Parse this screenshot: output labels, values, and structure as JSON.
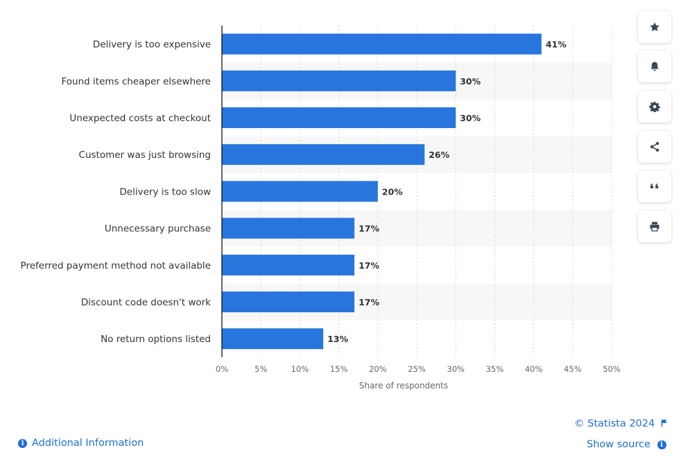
{
  "chart_data": {
    "type": "bar",
    "orientation": "horizontal",
    "categories": [
      "Delivery is too expensive",
      "Found items cheaper elsewhere",
      "Unexpected costs at checkout",
      "Customer was just browsing",
      "Delivery is too slow",
      "Unnecessary purchase",
      "Preferred payment method not available",
      "Discount code doesn't work",
      "No return options listed"
    ],
    "values": [
      41,
      30,
      30,
      26,
      20,
      17,
      17,
      17,
      13
    ],
    "value_labels": [
      "41%",
      "30%",
      "30%",
      "26%",
      "20%",
      "17%",
      "17%",
      "17%",
      "13%"
    ],
    "xlabel": "Share of respondents",
    "xlim": [
      0,
      50
    ],
    "x_ticks": [
      0,
      5,
      10,
      15,
      20,
      25,
      30,
      35,
      40,
      45,
      50
    ],
    "x_tick_labels": [
      "0%",
      "5%",
      "10%",
      "15%",
      "20%",
      "25%",
      "30%",
      "35%",
      "40%",
      "45%",
      "50%"
    ],
    "grid": true,
    "bar_color": "#2876dd"
  },
  "toolbar": {
    "buttons": [
      {
        "name": "favorite-button",
        "icon": "star-icon"
      },
      {
        "name": "notification-button",
        "icon": "bell-icon"
      },
      {
        "name": "settings-button",
        "icon": "gear-icon"
      },
      {
        "name": "share-button",
        "icon": "share-icon"
      },
      {
        "name": "cite-button",
        "icon": "quote-icon"
      },
      {
        "name": "print-button",
        "icon": "printer-icon"
      }
    ]
  },
  "footer": {
    "copyright": "© Statista 2024",
    "show_source": "Show source",
    "additional_info": "Additional Information",
    "link_color": "#1f6ed6"
  }
}
